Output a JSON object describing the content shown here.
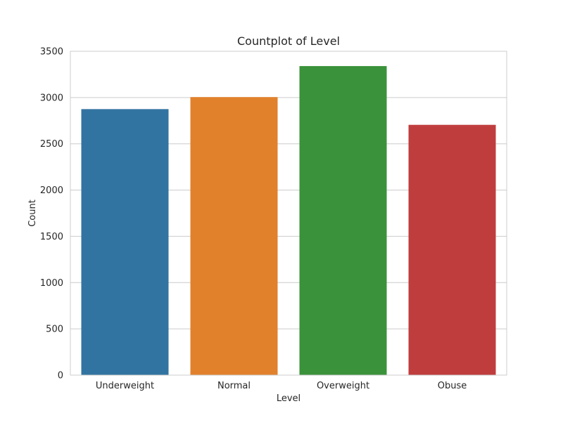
{
  "chart_data": {
    "type": "bar",
    "title": "Countplot of Level",
    "xlabel": "Level",
    "ylabel": "Count",
    "categories": [
      "Underweight",
      "Normal",
      "Overweight",
      "Obuse"
    ],
    "values": [
      2875,
      3005,
      3340,
      2705
    ],
    "colors": [
      "#3274a1",
      "#e1812c",
      "#3a923a",
      "#c03d3e"
    ],
    "ylim": [
      0,
      3500
    ],
    "yticks": [
      "0",
      "500",
      "1000",
      "1500",
      "2000",
      "2500",
      "3000",
      "3500"
    ],
    "grid": true,
    "legend": "none"
  }
}
